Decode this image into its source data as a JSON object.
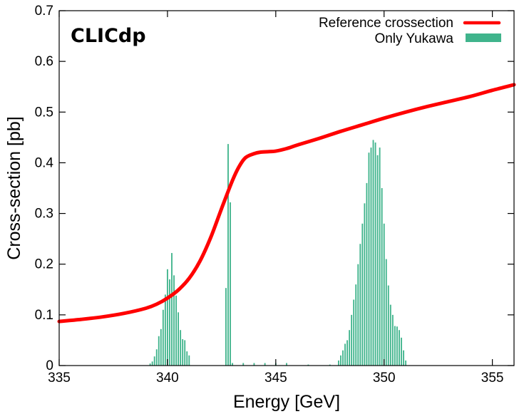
{
  "chart_data": {
    "type": "bar",
    "title": "",
    "watermark": "CLICdp",
    "xlabel": "Energy [GeV]",
    "ylabel": "Cross-section [pb]",
    "xlim": [
      335,
      356
    ],
    "ylim": [
      0,
      0.7
    ],
    "xticks": [
      335,
      340,
      345,
      350,
      355
    ],
    "yticks": [
      0,
      0.1,
      0.2,
      0.3,
      0.4,
      0.5,
      0.6,
      0.7
    ],
    "ytick_labels": [
      "0",
      "0.1",
      "0.2",
      "0.3",
      "0.4",
      "0.5",
      "0.6",
      "0.7"
    ],
    "legend_position": "top-right",
    "colors": {
      "curve": "#ff0000",
      "histogram": "#40b48c"
    },
    "series": [
      {
        "name": "Reference crossection",
        "kind": "line",
        "x": [
          335,
          336,
          337,
          338,
          339,
          339.5,
          340,
          340.5,
          341,
          341.5,
          342,
          342.5,
          343,
          343.3,
          343.6,
          344,
          344.3,
          344.7,
          345,
          345.5,
          346,
          347,
          348,
          349,
          350,
          351,
          352,
          353,
          354,
          355,
          356
        ],
        "y": [
          0.087,
          0.091,
          0.096,
          0.103,
          0.113,
          0.121,
          0.133,
          0.149,
          0.172,
          0.206,
          0.253,
          0.31,
          0.365,
          0.392,
          0.41,
          0.418,
          0.421,
          0.422,
          0.423,
          0.428,
          0.435,
          0.448,
          0.462,
          0.475,
          0.488,
          0.5,
          0.511,
          0.521,
          0.531,
          0.543,
          0.554
        ]
      },
      {
        "name": "Only Yukawa",
        "kind": "histogram",
        "bin_width": 0.1,
        "x": [
          339.2,
          339.3,
          339.4,
          339.5,
          339.6,
          339.7,
          339.8,
          339.9,
          340.0,
          340.1,
          340.2,
          340.3,
          340.4,
          340.5,
          340.6,
          340.7,
          340.8,
          340.9,
          341.0,
          342.7,
          342.8,
          342.9,
          343.0,
          343.5,
          344.0,
          344.5,
          345.0,
          345.5,
          346.5,
          347.5,
          347.9,
          348.0,
          348.1,
          348.2,
          348.3,
          348.4,
          348.5,
          348.6,
          348.7,
          348.8,
          348.9,
          349.0,
          349.1,
          349.2,
          349.3,
          349.4,
          349.5,
          349.6,
          349.7,
          349.8,
          349.9,
          350.0,
          350.1,
          350.2,
          350.3,
          350.4,
          350.5,
          350.6,
          350.7,
          350.8,
          350.9,
          351.0
        ],
        "y": [
          0.004,
          0.008,
          0.018,
          0.032,
          0.058,
          0.072,
          0.11,
          0.14,
          0.19,
          0.17,
          0.222,
          0.178,
          0.138,
          0.105,
          0.07,
          0.052,
          0.05,
          0.028,
          0.02,
          0.153,
          0.437,
          0.322,
          0.005,
          0.005,
          0.005,
          0.005,
          0.005,
          0.005,
          0.002,
          0.002,
          0.01,
          0.02,
          0.03,
          0.043,
          0.05,
          0.07,
          0.1,
          0.13,
          0.16,
          0.2,
          0.24,
          0.28,
          0.32,
          0.36,
          0.42,
          0.43,
          0.445,
          0.44,
          0.415,
          0.43,
          0.35,
          0.28,
          0.21,
          0.158,
          0.12,
          0.1,
          0.078,
          0.077,
          0.07,
          0.055,
          0.03,
          0.01
        ]
      }
    ]
  }
}
